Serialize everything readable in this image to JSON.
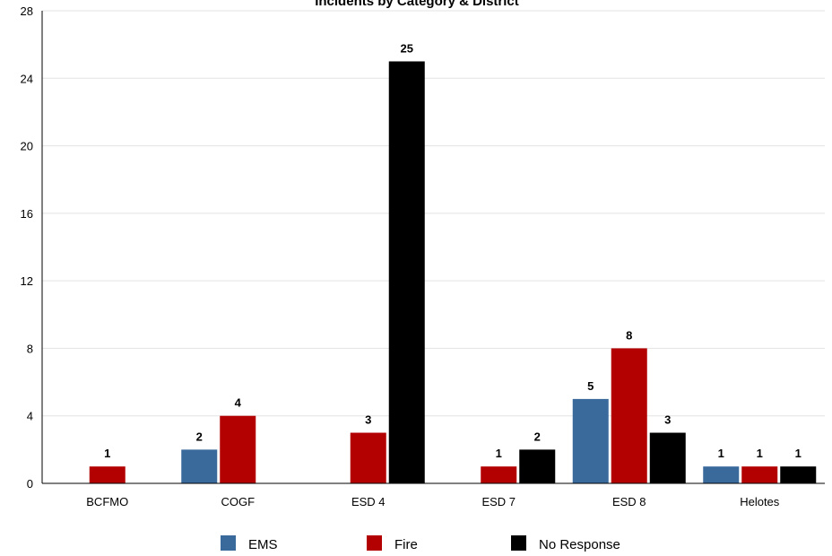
{
  "chart_data": {
    "type": "bar",
    "title": "Incidents by Category & District",
    "xlabel": "",
    "ylabel": "",
    "ylim": [
      0,
      28
    ],
    "yticks": [
      0,
      4,
      8,
      12,
      16,
      20,
      24,
      28
    ],
    "grid": true,
    "legend_position": "bottom",
    "categories": [
      "BCFMO",
      "COGF",
      "ESD 4",
      "ESD 7",
      "ESD 8",
      "Helotes"
    ],
    "series": [
      {
        "name": "EMS",
        "color": "#3a6a9c",
        "values": [
          null,
          2,
          null,
          null,
          5,
          1
        ]
      },
      {
        "name": "Fire",
        "color": "#b30000",
        "values": [
          1,
          4,
          3,
          1,
          8,
          1
        ]
      },
      {
        "name": "No Response",
        "color": "#000000",
        "values": [
          null,
          null,
          25,
          2,
          3,
          1
        ]
      }
    ]
  }
}
